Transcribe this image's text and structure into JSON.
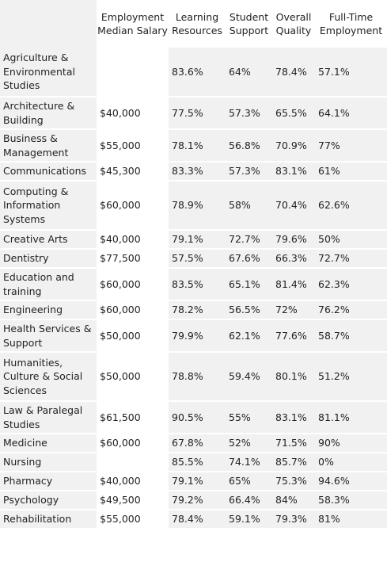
{
  "headers": {
    "subject": "",
    "salary": "Employment Median Salary",
    "learning": "Learning Resources",
    "support": "Student Support",
    "quality": "Overall Quality",
    "employment": "Full-Time Employment"
  },
  "rows": [
    {
      "subject": "Agriculture & Environmental Studies",
      "salary": "",
      "learning": "83.6%",
      "support": "64%",
      "quality": "78.4%",
      "employment": "57.1%"
    },
    {
      "subject": "Architecture & Building",
      "salary": "$40,000",
      "learning": "77.5%",
      "support": "57.3%",
      "quality": "65.5%",
      "employment": "64.1%"
    },
    {
      "subject": "Business & Management",
      "salary": "$55,000",
      "learning": "78.1%",
      "support": "56.8%",
      "quality": "70.9%",
      "employment": "77%"
    },
    {
      "subject": "Communications",
      "salary": "$45,300",
      "learning": "83.3%",
      "support": "57.3%",
      "quality": "83.1%",
      "employment": "61%"
    },
    {
      "subject": "Computing & Information Systems",
      "salary": "$60,000",
      "learning": "78.9%",
      "support": "58%",
      "quality": "70.4%",
      "employment": "62.6%"
    },
    {
      "subject": "Creative Arts",
      "salary": "$40,000",
      "learning": "79.1%",
      "support": "72.7%",
      "quality": "79.6%",
      "employment": "50%"
    },
    {
      "subject": "Dentistry",
      "salary": "$77,500",
      "learning": "57.5%",
      "support": "67.6%",
      "quality": "66.3%",
      "employment": "72.7%"
    },
    {
      "subject": "Education and training",
      "salary": "$60,000",
      "learning": "83.5%",
      "support": "65.1%",
      "quality": "81.4%",
      "employment": "62.3%"
    },
    {
      "subject": "Engineering",
      "salary": "$60,000",
      "learning": "78.2%",
      "support": "56.5%",
      "quality": "72%",
      "employment": "76.2%"
    },
    {
      "subject": "Health Services & Support",
      "salary": "$50,000",
      "learning": "79.9%",
      "support": "62.1%",
      "quality": "77.6%",
      "employment": "58.7%"
    },
    {
      "subject": "Humanities, Culture & Social Sciences",
      "salary": "$50,000",
      "learning": "78.8%",
      "support": "59.4%",
      "quality": "80.1%",
      "employment": "51.2%"
    },
    {
      "subject": "Law & Paralegal Studies",
      "salary": "$61,500",
      "learning": "90.5%",
      "support": "55%",
      "quality": "83.1%",
      "employment": "81.1%"
    },
    {
      "subject": "Medicine",
      "salary": "$60,000",
      "learning": "67.8%",
      "support": "52%",
      "quality": "71.5%",
      "employment": "90%"
    },
    {
      "subject": "Nursing",
      "salary": "",
      "learning": "85.5%",
      "support": "74.1%",
      "quality": "85.7%",
      "employment": "0%"
    },
    {
      "subject": "Pharmacy",
      "salary": "$40,000",
      "learning": "79.1%",
      "support": "65%",
      "quality": "75.3%",
      "employment": "94.6%"
    },
    {
      "subject": "Psychology",
      "salary": "$49,500",
      "learning": "79.2%",
      "support": "66.4%",
      "quality": "84%",
      "employment": "58.3%"
    },
    {
      "subject": "Rehabilitation",
      "salary": "$55,000",
      "learning": "78.4%",
      "support": "59.1%",
      "quality": "79.3%",
      "employment": "81%"
    }
  ]
}
